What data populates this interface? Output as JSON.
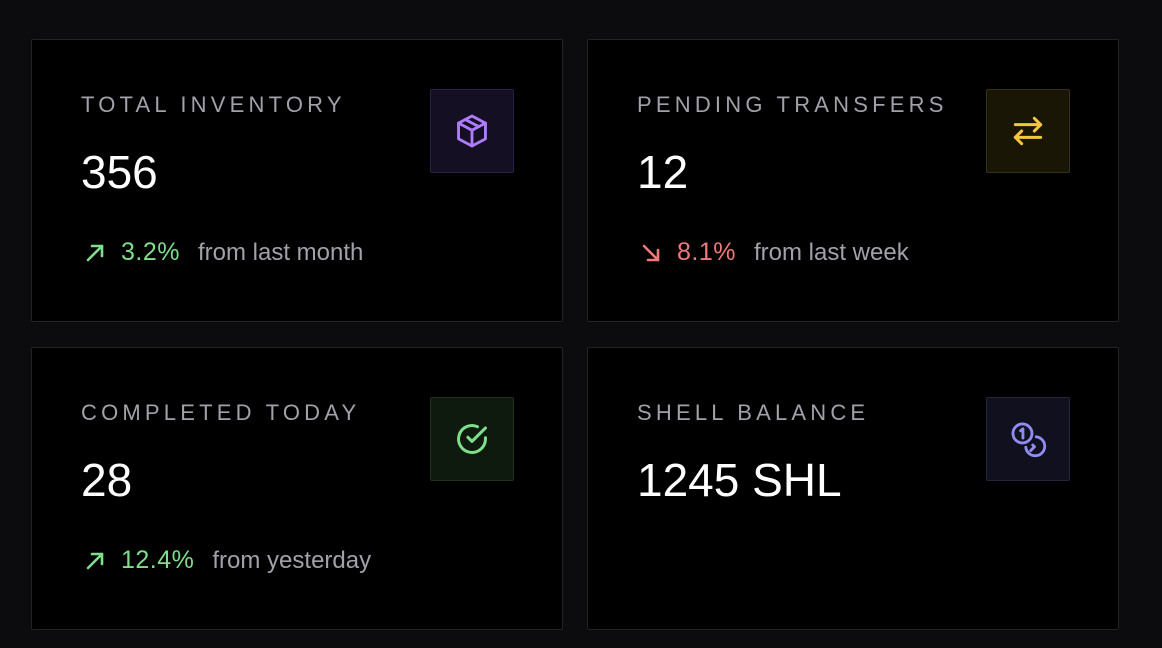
{
  "colors": {
    "up": "#7ede8a",
    "down": "#f07878",
    "muted": "#a1a1aa"
  },
  "cards": [
    {
      "label": "TOTAL INVENTORY",
      "value": "356",
      "icon": "package-icon",
      "icon_color": "#b07cff",
      "icon_bg": "#150f24",
      "icon_border": "#2a2145",
      "trend": {
        "direction": "up",
        "percent": "3.2%",
        "text": "from last month"
      }
    },
    {
      "label": "PENDING TRANSFERS",
      "value": "12",
      "icon": "arrows-left-right-icon",
      "icon_color": "#f5c53d",
      "icon_bg": "#1a1605",
      "icon_border": "#35301a",
      "trend": {
        "direction": "down",
        "percent": "8.1%",
        "text": "from last week"
      }
    },
    {
      "label": "COMPLETED TODAY",
      "value": "28",
      "icon": "check-circle-icon",
      "icon_color": "#7ede8a",
      "icon_bg": "#0d1a0d",
      "icon_border": "#20321f",
      "trend": {
        "direction": "up",
        "percent": "12.4%",
        "text": "from yesterday"
      }
    },
    {
      "label": "SHELL BALANCE",
      "value": "1245 SHL",
      "icon": "coins-icon",
      "icon_color": "#8f8cf2",
      "icon_bg": "#10101f",
      "icon_border": "#25253a"
    }
  ]
}
